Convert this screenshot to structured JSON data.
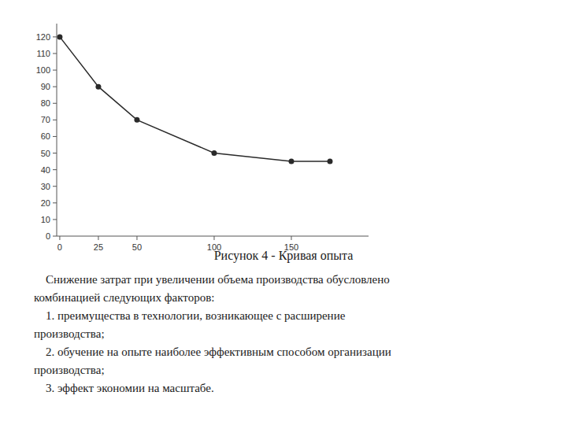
{
  "chart_data": {
    "type": "line",
    "title": "Рисунок 4 - Кривая опыта",
    "annotations": [
      "    Снижение затрат при увеличении объема производства обусловлено",
      "комбинацией следующих факторов:",
      "    1. преимущества в технологии, возникающее с расширение",
      "производства;",
      "    2. обучение на опыте наиболее эффективным способом организации",
      "производства;",
      "    3. эффект экономии на масштабе."
    ],
    "x": [
      0,
      25,
      50,
      100,
      150,
      175
    ],
    "values": [
      120,
      90,
      70,
      50,
      45,
      45
    ],
    "color": "#2a2a2a",
    "marker": "circle",
    "xlim": [
      -2,
      200
    ],
    "ylim": [
      0,
      128
    ],
    "xticks": [
      0,
      25,
      50,
      100,
      150
    ],
    "yticks": [
      0,
      10,
      20,
      30,
      40,
      50,
      60,
      70,
      80,
      90,
      100,
      110,
      120
    ],
    "grid": false
  }
}
